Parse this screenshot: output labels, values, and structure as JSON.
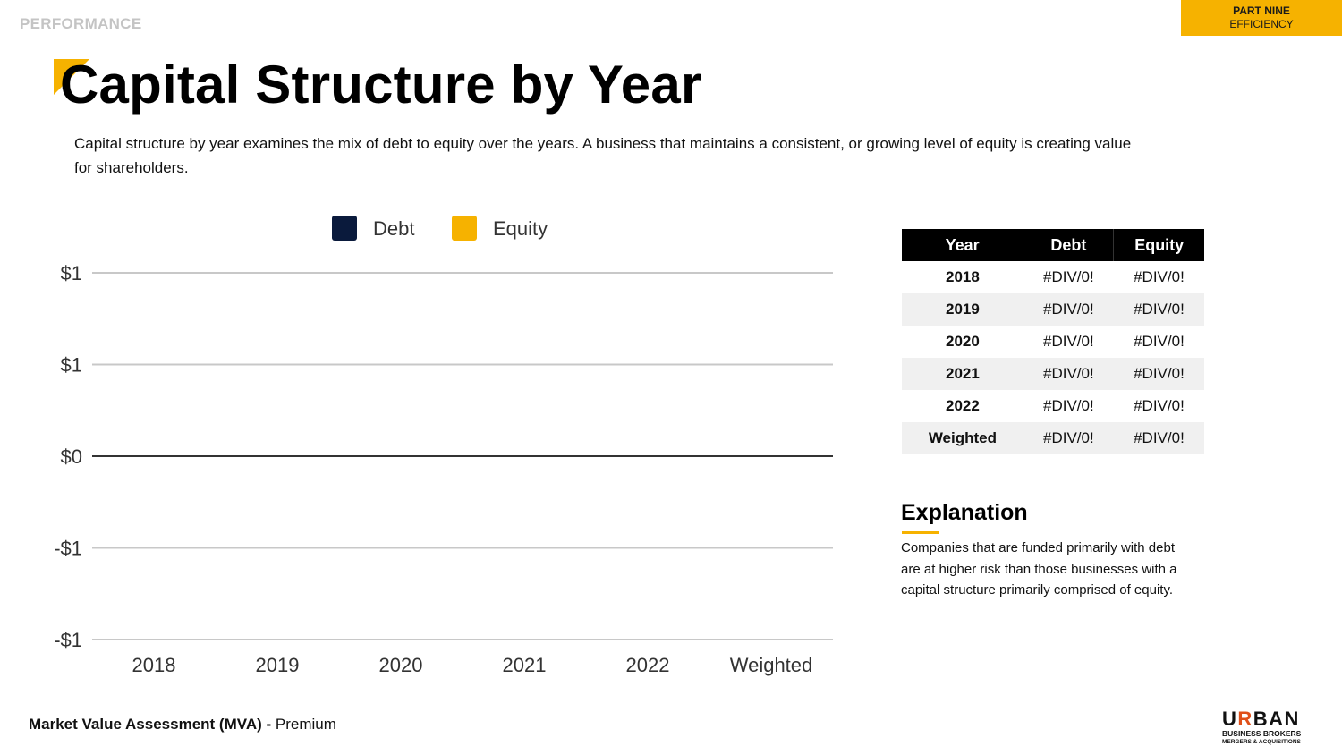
{
  "header": {
    "section_label": "PERFORMANCE",
    "part": "PART NINE",
    "part_name": "EFFICIENCY"
  },
  "page": {
    "title": "Capital Structure by Year",
    "intro": "Capital structure by year examines the mix of debt to equity over the years. A business that maintains a consistent, or growing level of equity is creating value for shareholders."
  },
  "colors": {
    "accent": "#f6b200",
    "debt": "#0a1a3c",
    "equity": "#f6b200"
  },
  "chart_data": {
    "type": "bar",
    "title": "",
    "xlabel": "",
    "ylabel": "",
    "categories": [
      "2018",
      "2019",
      "2020",
      "2021",
      "2022",
      "Weighted"
    ],
    "series": [
      {
        "name": "Debt",
        "values": [
          null,
          null,
          null,
          null,
          null,
          null
        ]
      },
      {
        "name": "Equity",
        "values": [
          null,
          null,
          null,
          null,
          null,
          null
        ]
      }
    ],
    "yticks": [
      1,
      0.5,
      0,
      -0.5,
      -1
    ],
    "ytick_labels": [
      "$1",
      "$1",
      "$0",
      "-$1",
      "-$1"
    ],
    "ylim": [
      -1,
      1
    ],
    "grid": true,
    "legend_position": "top"
  },
  "table": {
    "headers": [
      "Year",
      "Debt",
      "Equity"
    ],
    "rows": [
      [
        "2018",
        "#DIV/0!",
        "#DIV/0!"
      ],
      [
        "2019",
        "#DIV/0!",
        "#DIV/0!"
      ],
      [
        "2020",
        "#DIV/0!",
        "#DIV/0!"
      ],
      [
        "2021",
        "#DIV/0!",
        "#DIV/0!"
      ],
      [
        "2022",
        "#DIV/0!",
        "#DIV/0!"
      ],
      [
        "Weighted",
        "#DIV/0!",
        "#DIV/0!"
      ]
    ]
  },
  "explanation": {
    "title": "Explanation",
    "text": "Companies that are funded primarily with debt are at higher risk than those businesses with a capital structure primarily comprised of equity."
  },
  "footer": {
    "main": "Market Value Assessment (MVA) -",
    "tier": "Premium"
  },
  "logo": {
    "line1_a": "U",
    "line1_b": "R",
    "line1_c": "BAN",
    "line2": "BUSINESS BROKERS",
    "line3": "MERGERS & ACQUISITIONS"
  }
}
